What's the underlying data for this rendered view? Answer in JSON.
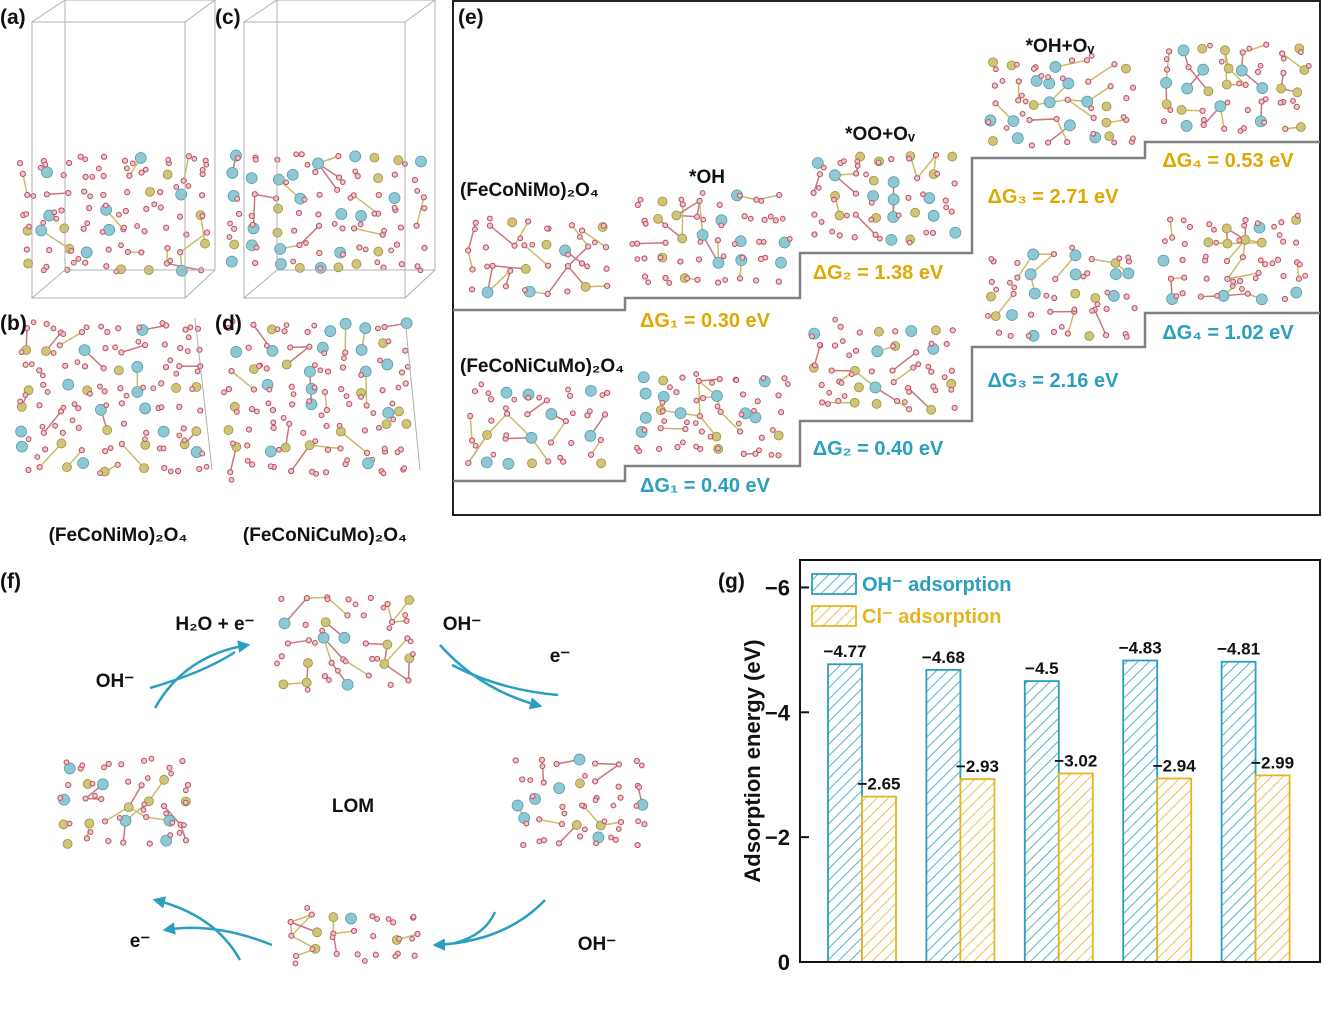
{
  "panels": {
    "a": "(a)",
    "b": "(b)",
    "c": "(c)",
    "d": "(d)",
    "e": "(e)",
    "f": "(f)",
    "g": "(g)"
  },
  "structures": {
    "captions": [
      "(FeCoNiMo)₂O₄",
      "(FeCoNiCuMo)₂O₄"
    ]
  },
  "free_energy": {
    "intermediates": [
      "*OH",
      "*OO+Oᵥ",
      "*OH+Oᵥ"
    ],
    "pathways": [
      {
        "name": "(FeCoNiMo)₂O₄",
        "steps": [
          "ΔG₁ = 0.30 eV",
          "ΔG₂ = 1.38 eV",
          "ΔG₃ = 2.71 eV",
          "ΔG₄ = 0.53 eV"
        ]
      },
      {
        "name": "(FeCoNiCuMo)₂O₄",
        "steps": [
          "ΔG₁ = 0.40 eV",
          "ΔG₂ = 0.40 eV",
          "ΔG₃ = 2.16 eV",
          "ΔG₄ = 1.02 eV"
        ]
      }
    ]
  },
  "lom": {
    "center": "LOM",
    "labels": [
      "H₂O + e⁻",
      "OH⁻",
      "OH⁻",
      "e⁻",
      "e⁻",
      "OH⁻"
    ]
  },
  "chart_data": {
    "type": "bar",
    "ylabel": "Adsorption energy (eV)",
    "categories": [
      null,
      null,
      null,
      null,
      null
    ],
    "series": [
      {
        "name": "OH⁻ adsorption",
        "color": "#2a9fc0",
        "values": [
          -4.77,
          -4.68,
          -4.5,
          -4.83,
          -4.81
        ],
        "value_labels": [
          "−4.77",
          "−4.68",
          "−4.5",
          "−4.83",
          "−4.81"
        ]
      },
      {
        "name": "Cl⁻ adsorption",
        "color": "#e6b422",
        "values": [
          -2.65,
          -2.93,
          -3.02,
          -2.94,
          -2.99
        ],
        "value_labels": [
          "−2.65",
          "−2.93",
          "−3.02",
          "−2.94",
          "−2.99"
        ]
      }
    ],
    "ylim": [
      0,
      -6.44
    ],
    "yticks": [
      0,
      {
        "value": -2,
        "label": "−2"
      },
      {
        "value": -4,
        "label": "−4"
      },
      {
        "value": -6,
        "label": "−6"
      }
    ],
    "hatch": true,
    "legend": "top-left"
  }
}
